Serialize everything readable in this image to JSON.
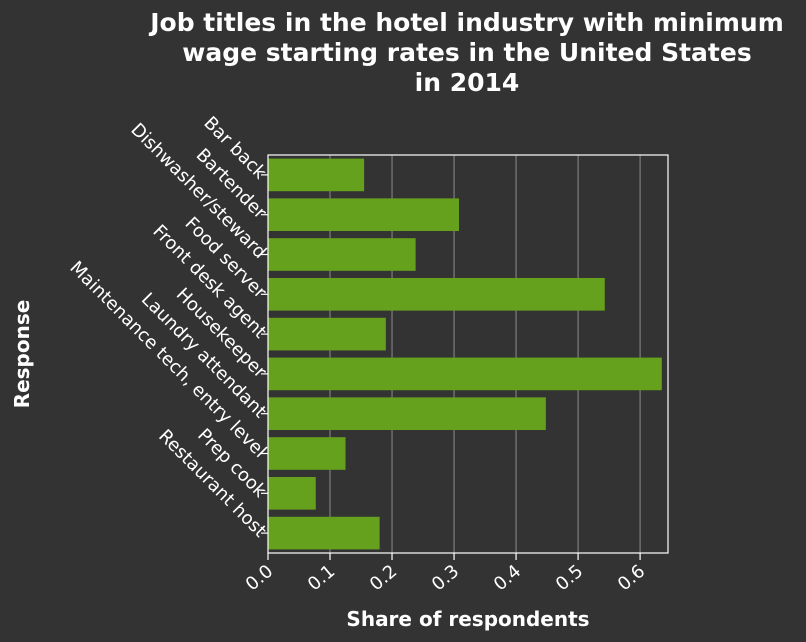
{
  "chart_data": {
    "type": "bar",
    "orientation": "horizontal",
    "title": "Job titles in the hotel industry with minimum wage starting rates in the United States in 2014",
    "title_lines": [
      "Job titles in the hotel industry with minimum",
      "wage starting rates in the United States",
      "in 2014"
    ],
    "xlabel": "Share of respondents",
    "ylabel": "Response",
    "categories": [
      "Bar back",
      "Bartender",
      "Dishwasher/steward",
      "Food server",
      "Front desk agent",
      "Housekeeper",
      "Laundry attendant",
      "Maintenance tech, entry level",
      "Prep cook",
      "Restaurant host"
    ],
    "values": [
      0.155,
      0.308,
      0.238,
      0.543,
      0.19,
      0.635,
      0.448,
      0.125,
      0.077,
      0.18
    ],
    "xlim": [
      0,
      0.645
    ],
    "xticks": [
      0.0,
      0.1,
      0.2,
      0.3,
      0.4,
      0.5,
      0.6
    ],
    "xtick_labels": [
      "0.0",
      "0.1",
      "0.2",
      "0.3",
      "0.4",
      "0.5",
      "0.6"
    ],
    "grid": "vertical",
    "legend": "none",
    "colors": {
      "background": "#333333",
      "bar": "#66a11d",
      "grid": "#8c8c8c",
      "text": "#ffffff",
      "axis": "#ffffff"
    }
  }
}
